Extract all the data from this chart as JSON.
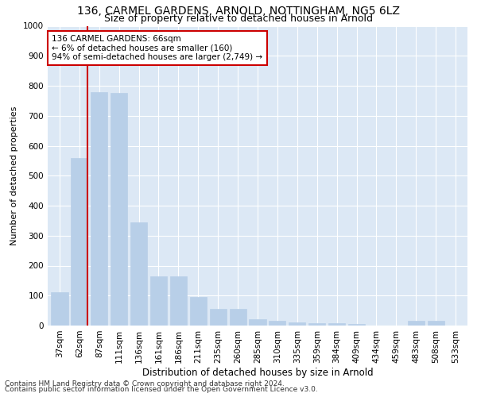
{
  "title1": "136, CARMEL GARDENS, ARNOLD, NOTTINGHAM, NG5 6LZ",
  "title2": "Size of property relative to detached houses in Arnold",
  "xlabel": "Distribution of detached houses by size in Arnold",
  "ylabel": "Number of detached properties",
  "categories": [
    "37sqm",
    "62sqm",
    "87sqm",
    "111sqm",
    "136sqm",
    "161sqm",
    "186sqm",
    "211sqm",
    "235sqm",
    "260sqm",
    "285sqm",
    "310sqm",
    "335sqm",
    "359sqm",
    "384sqm",
    "409sqm",
    "434sqm",
    "459sqm",
    "483sqm",
    "508sqm",
    "533sqm"
  ],
  "values": [
    110,
    560,
    780,
    775,
    345,
    163,
    163,
    95,
    55,
    55,
    20,
    15,
    10,
    8,
    8,
    5,
    0,
    0,
    15,
    15,
    0
  ],
  "bar_color": "#b8cfe8",
  "highlight_color": "#cc0000",
  "annotation_text": "136 CARMEL GARDENS: 66sqm\n← 6% of detached houses are smaller (160)\n94% of semi-detached houses are larger (2,749) →",
  "annotation_box_color": "#ffffff",
  "annotation_box_edgecolor": "#cc0000",
  "ylim": [
    0,
    1000
  ],
  "yticks": [
    0,
    100,
    200,
    300,
    400,
    500,
    600,
    700,
    800,
    900,
    1000
  ],
  "footer1": "Contains HM Land Registry data © Crown copyright and database right 2024.",
  "footer2": "Contains public sector information licensed under the Open Government Licence v3.0.",
  "bg_color": "#dce8f5",
  "grid_color": "#ffffff",
  "fig_bg_color": "#ffffff",
  "title1_fontsize": 10,
  "title2_fontsize": 9,
  "xlabel_fontsize": 8.5,
  "ylabel_fontsize": 8,
  "tick_fontsize": 7.5,
  "annotation_fontsize": 7.5,
  "footer_fontsize": 6.5
}
